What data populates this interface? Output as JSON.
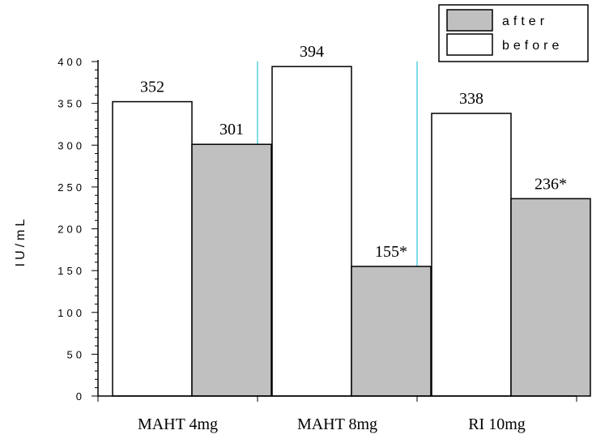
{
  "chart_data": {
    "type": "bar",
    "categories": [
      "MAHT 4mg",
      "MAHT 8mg",
      "RI 10mg"
    ],
    "series": [
      {
        "name": "before",
        "color": "#ffffff",
        "values": [
          352,
          394,
          338
        ],
        "labels": [
          "352",
          "394",
          "338"
        ]
      },
      {
        "name": "after",
        "color": "#c0c0c0",
        "values": [
          301,
          155,
          236
        ],
        "labels": [
          "301",
          "155*",
          "236*"
        ]
      }
    ],
    "legend_order": [
      "after",
      "before"
    ],
    "legend_position": "top-right",
    "title": "",
    "xlabel": "",
    "ylabel": "IU/mL",
    "ylim": [
      0,
      400
    ],
    "yticks": [
      0,
      50,
      100,
      150,
      200,
      250,
      300,
      350,
      400
    ],
    "ytick_labels": [
      "0",
      "50",
      "100",
      "150",
      "200",
      "250",
      "300",
      "350",
      "400"
    ],
    "grid": false,
    "separator_color": "#7fdde8"
  }
}
